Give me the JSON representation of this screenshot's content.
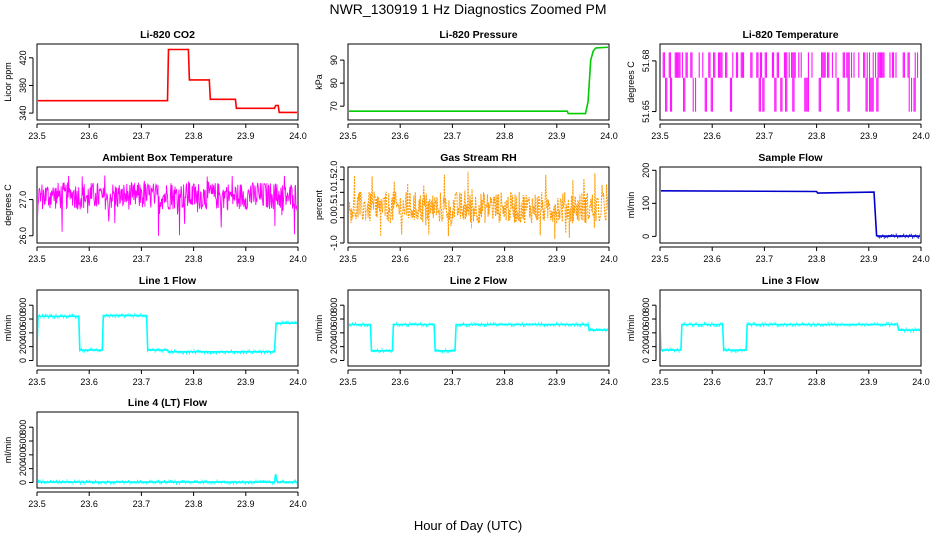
{
  "figure": {
    "title": "NWR_130919  1 Hz Diagnostics Zoomed PM",
    "xlabel": "Hour of Day (UTC)"
  },
  "chart_data": [
    {
      "type": "line",
      "title": "Li-820 CO2",
      "ylabel": "Licor ppm",
      "color": "#ff0000",
      "xlim": [
        23.5,
        24.0
      ],
      "ylim": [
        330,
        440
      ],
      "xticks": [
        "23.5",
        "23.6",
        "23.7",
        "23.8",
        "23.9",
        "24.0"
      ],
      "yticks": [
        "340",
        "380",
        "420"
      ],
      "x": [
        23.5,
        23.75,
        23.752,
        23.79,
        23.792,
        23.83,
        23.832,
        23.88,
        23.882,
        23.955,
        23.957,
        23.962,
        23.964,
        24.0
      ],
      "y": [
        358,
        358,
        432,
        432,
        388,
        388,
        360,
        360,
        347,
        347,
        351,
        351,
        341,
        341
      ]
    },
    {
      "type": "line",
      "title": "Li-820 Pressure",
      "ylabel": "kPa",
      "color": "#00cc00",
      "xlim": [
        23.5,
        24.0
      ],
      "ylim": [
        64,
        97
      ],
      "xticks": [
        "23.5",
        "23.6",
        "23.7",
        "23.8",
        "23.9",
        "24.0"
      ],
      "yticks": [
        "70",
        "80",
        "90"
      ],
      "x": [
        23.5,
        23.92,
        23.922,
        23.955,
        23.96,
        23.965,
        23.97,
        23.975,
        24.0
      ],
      "y": [
        67.8,
        67.8,
        66.8,
        66.8,
        72,
        90,
        94,
        95.3,
        95.6
      ]
    },
    {
      "type": "line",
      "title": "Li-820 Temperature",
      "ylabel": "degrees C",
      "color": "#ff00ff",
      "xlim": [
        23.5,
        24.0
      ],
      "ylim": [
        51.645,
        51.69
      ],
      "xticks": [
        "23.5",
        "23.6",
        "23.7",
        "23.8",
        "23.9",
        "24.0"
      ],
      "yticks": [
        "51.65",
        "51.68"
      ],
      "series": [
        {
          "levels": [
            51.65,
            51.67,
            51.685
          ],
          "trace": "quantized oscillation between sensor levels"
        }
      ]
    },
    {
      "type": "line",
      "title": "Ambient Box Temperature",
      "ylabel": "degrees C",
      "color": "#ff00ff",
      "xlim": [
        23.5,
        24.0
      ],
      "ylim": [
        25.8,
        27.9
      ],
      "xticks": [
        "23.5",
        "23.6",
        "23.7",
        "23.8",
        "23.9",
        "24.0"
      ],
      "yticks": [
        "26.0",
        "27.0"
      ],
      "series": [
        {
          "mean": 27.1,
          "noise_range": [
            26.0,
            27.7
          ]
        }
      ]
    },
    {
      "type": "line",
      "title": "Gas Stream RH",
      "ylabel": "percent",
      "color": "#ff9900",
      "xlim": [
        23.5,
        24.0
      ],
      "ylim": [
        -1.0,
        2.0
      ],
      "xticks": [
        "23.5",
        "23.6",
        "23.7",
        "23.8",
        "23.9",
        "24.0"
      ],
      "yticks": [
        "-1.0",
        "0.0",
        "0.5",
        "1.0",
        "1.5",
        "2.0"
      ],
      "series": [
        {
          "mean": 0.4,
          "noise_range": [
            -0.9,
            1.9
          ]
        }
      ]
    },
    {
      "type": "line",
      "title": "Sample Flow",
      "ylabel": "ml/min",
      "color": "#0000cc",
      "xlim": [
        23.5,
        24.0
      ],
      "ylim": [
        -20,
        210
      ],
      "xticks": [
        "23.5",
        "23.6",
        "23.7",
        "23.8",
        "23.9",
        "24.0"
      ],
      "yticks": [
        "0",
        "100",
        "200"
      ],
      "x": [
        23.5,
        23.8,
        23.802,
        23.91,
        23.915,
        23.918,
        24.0
      ],
      "y": [
        138,
        136,
        131,
        134,
        2,
        1,
        1
      ]
    },
    {
      "type": "line",
      "title": "Line 1 Flow",
      "ylabel": "ml/min",
      "color": "#00ffff",
      "xlim": [
        23.5,
        24.0
      ],
      "ylim": [
        -80,
        1020
      ],
      "xticks": [
        "23.5",
        "23.6",
        "23.7",
        "23.8",
        "23.9",
        "24.0"
      ],
      "yticks": [
        "0",
        "200",
        "400",
        "600",
        "800"
      ],
      "x": [
        23.5,
        23.502,
        23.58,
        23.582,
        23.625,
        23.627,
        23.71,
        23.712,
        23.75,
        23.752,
        23.955,
        23.958,
        24.0
      ],
      "y": [
        160,
        640,
        640,
        150,
        150,
        650,
        650,
        150,
        150,
        125,
        125,
        540,
        540
      ]
    },
    {
      "type": "line",
      "title": "Line 2 Flow",
      "ylabel": "ml/min",
      "color": "#00ffff",
      "xlim": [
        23.5,
        24.0
      ],
      "ylim": [
        -80,
        1020
      ],
      "xticks": [
        "23.5",
        "23.6",
        "23.7",
        "23.8",
        "23.9",
        "24.0"
      ],
      "yticks": [
        "0",
        "200",
        "400",
        "600",
        "800"
      ],
      "x": [
        23.5,
        23.543,
        23.545,
        23.585,
        23.587,
        23.665,
        23.667,
        23.705,
        23.707,
        23.96,
        23.962,
        24.0
      ],
      "y": [
        520,
        520,
        140,
        140,
        520,
        520,
        140,
        140,
        520,
        520,
        440,
        440
      ]
    },
    {
      "type": "line",
      "title": "Line 3 Flow",
      "ylabel": "ml/min",
      "color": "#00ffff",
      "xlim": [
        23.5,
        24.0
      ],
      "ylim": [
        -80,
        1020
      ],
      "xticks": [
        "23.5",
        "23.6",
        "23.7",
        "23.8",
        "23.9",
        "24.0"
      ],
      "yticks": [
        "0",
        "200",
        "400",
        "600",
        "800"
      ],
      "x": [
        23.5,
        23.502,
        23.54,
        23.542,
        23.62,
        23.622,
        23.665,
        23.667,
        23.955,
        23.957,
        24.0
      ],
      "y": [
        540,
        150,
        150,
        520,
        520,
        150,
        150,
        520,
        520,
        440,
        440
      ]
    },
    {
      "type": "line",
      "title": "Line 4 (LT) Flow",
      "ylabel": "ml/min",
      "color": "#00ffff",
      "xlim": [
        23.5,
        24.0
      ],
      "ylim": [
        -80,
        1020
      ],
      "xticks": [
        "23.5",
        "23.6",
        "23.7",
        "23.8",
        "23.9",
        "24.0"
      ],
      "yticks": [
        "0",
        "200",
        "400",
        "600",
        "800"
      ],
      "x": [
        23.5,
        23.955,
        23.957,
        23.959,
        23.961,
        24.0
      ],
      "y": [
        5,
        5,
        120,
        40,
        5,
        5
      ]
    }
  ]
}
